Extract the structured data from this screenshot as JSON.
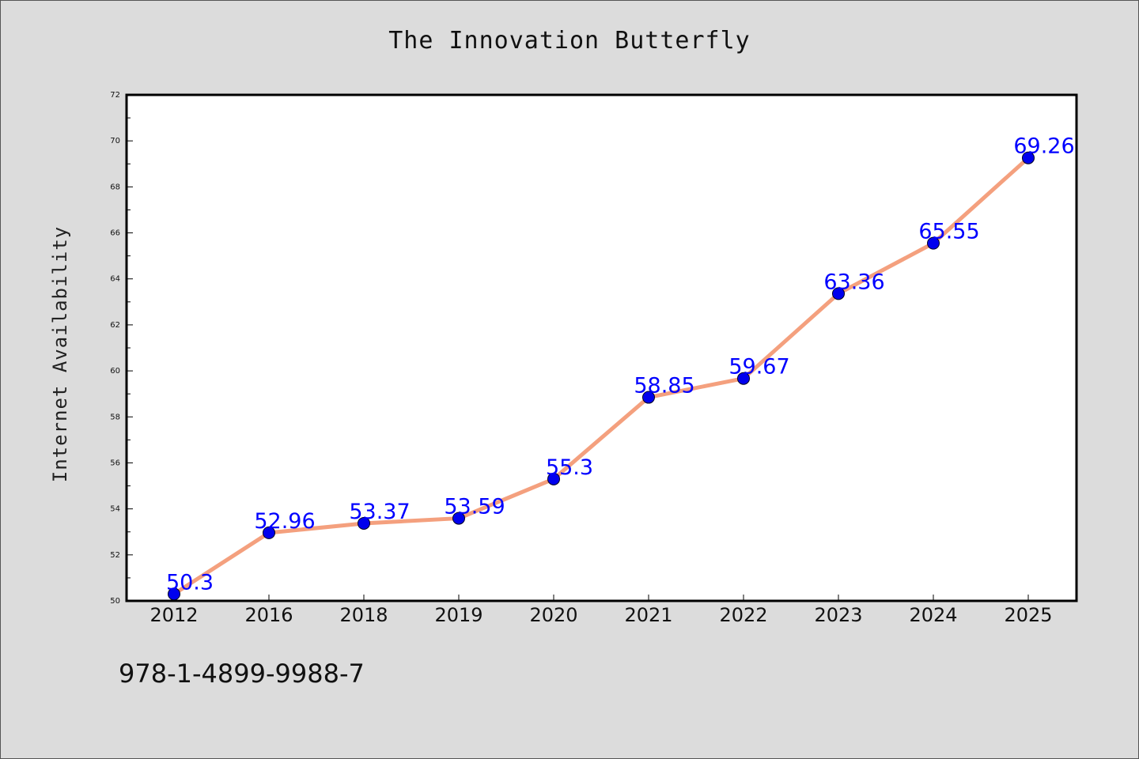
{
  "chart_data": {
    "type": "line",
    "title": "The Innovation Butterfly",
    "xlabel": "",
    "ylabel": "Internet Availability",
    "categories": [
      "2012",
      "2016",
      "2018",
      "2019",
      "2020",
      "2021",
      "2022",
      "2023",
      "2024",
      "2025"
    ],
    "series": [
      {
        "values": [
          50.3,
          52.96,
          53.37,
          53.59,
          55.3,
          58.85,
          59.67,
          63.36,
          65.55,
          69.26
        ],
        "data_labels": [
          "50.3",
          "52.96",
          "53.37",
          "53.59",
          "55.3",
          "58.85",
          "59.67",
          "63.36",
          "65.55",
          "69.26"
        ]
      }
    ],
    "ylim": [
      50,
      72
    ],
    "yticks": [
      "50",
      "52",
      "54",
      "56",
      "58",
      "60",
      "62",
      "64",
      "66",
      "68",
      "70",
      "72"
    ],
    "grid": false,
    "colors": {
      "line": "#f4a07e",
      "marker": "#0000ee",
      "label": "#0000ff",
      "background": "#dcdcdc",
      "plot_background": "#ffffff"
    }
  },
  "footer_text": "978-1-4899-9988-7"
}
